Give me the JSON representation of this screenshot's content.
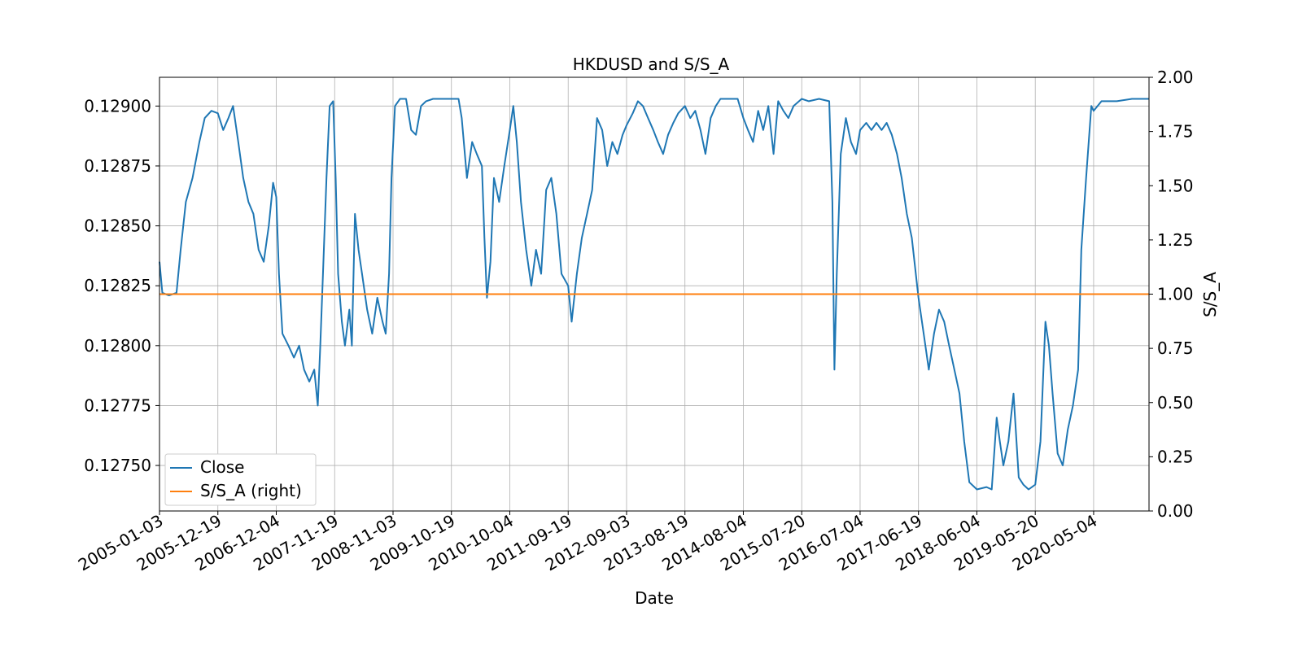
{
  "chart_data": {
    "type": "line",
    "title": "HKDUSD and S/S_A",
    "xlabel": "Date",
    "ylabel_left": "",
    "ylabel_right": "S/S_A",
    "grid": true,
    "legend_position": "lower-left",
    "xlim": [
      "2005-01-03",
      "2021-04-01"
    ],
    "ylim_left": [
      0.12731,
      0.12912
    ],
    "ylim_right": [
      0.0,
      2.0
    ],
    "x_tick_labels": [
      "2005-01-03",
      "2005-12-19",
      "2006-12-04",
      "2007-11-19",
      "2008-11-03",
      "2009-10-19",
      "2010-10-04",
      "2011-09-19",
      "2012-09-03",
      "2013-08-19",
      "2014-08-04",
      "2015-07-20",
      "2016-07-04",
      "2017-06-19",
      "2018-06-04",
      "2019-05-20",
      "2020-05-04"
    ],
    "y_left_tick_labels": [
      "0.12750",
      "0.12775",
      "0.12800",
      "0.12825",
      "0.12850",
      "0.12875",
      "0.12900"
    ],
    "y_right_tick_labels": [
      "0.00",
      "0.25",
      "0.50",
      "0.75",
      "1.00",
      "1.25",
      "1.50",
      "1.75",
      "2.00"
    ],
    "series": [
      {
        "name": "Close",
        "axis": "left",
        "color": "#1f77b4",
        "points": [
          [
            "2005-01-03",
            0.12835
          ],
          [
            "2005-01-20",
            0.12822
          ],
          [
            "2005-03-01",
            0.12821
          ],
          [
            "2005-04-15",
            0.12822
          ],
          [
            "2005-05-10",
            0.1284
          ],
          [
            "2005-06-10",
            0.1286
          ],
          [
            "2005-07-20",
            0.1287
          ],
          [
            "2005-08-30",
            0.12885
          ],
          [
            "2005-10-01",
            0.12895
          ],
          [
            "2005-11-10",
            0.12898
          ],
          [
            "2005-12-19",
            0.12897
          ],
          [
            "2006-01-20",
            0.1289
          ],
          [
            "2006-02-20",
            0.12895
          ],
          [
            "2006-03-20",
            0.129
          ],
          [
            "2006-04-20",
            0.12885
          ],
          [
            "2006-05-20",
            0.1287
          ],
          [
            "2006-06-20",
            0.1286
          ],
          [
            "2006-07-20",
            0.12855
          ],
          [
            "2006-08-20",
            0.1284
          ],
          [
            "2006-09-20",
            0.12835
          ],
          [
            "2006-10-20",
            0.1285
          ],
          [
            "2006-11-15",
            0.12868
          ],
          [
            "2006-12-04",
            0.12862
          ],
          [
            "2006-12-20",
            0.1283
          ],
          [
            "2007-01-10",
            0.12805
          ],
          [
            "2007-02-15",
            0.128
          ],
          [
            "2007-03-20",
            0.12795
          ],
          [
            "2007-04-20",
            0.128
          ],
          [
            "2007-05-20",
            0.1279
          ],
          [
            "2007-06-20",
            0.12785
          ],
          [
            "2007-07-20",
            0.1279
          ],
          [
            "2007-08-10",
            0.12775
          ],
          [
            "2007-08-25",
            0.128
          ],
          [
            "2007-09-10",
            0.1283
          ],
          [
            "2007-10-01",
            0.1287
          ],
          [
            "2007-10-20",
            0.129
          ],
          [
            "2007-11-10",
            0.12902
          ],
          [
            "2007-11-25",
            0.1287
          ],
          [
            "2007-12-10",
            0.1283
          ],
          [
            "2008-01-01",
            0.1281
          ],
          [
            "2008-01-20",
            0.128
          ],
          [
            "2008-02-15",
            0.12815
          ],
          [
            "2008-03-01",
            0.128
          ],
          [
            "2008-03-20",
            0.12855
          ],
          [
            "2008-04-10",
            0.1284
          ],
          [
            "2008-05-01",
            0.1283
          ],
          [
            "2008-06-01",
            0.12815
          ],
          [
            "2008-07-01",
            0.12805
          ],
          [
            "2008-08-01",
            0.1282
          ],
          [
            "2008-09-01",
            0.1281
          ],
          [
            "2008-09-20",
            0.12805
          ],
          [
            "2008-10-10",
            0.1283
          ],
          [
            "2008-10-25",
            0.1287
          ],
          [
            "2008-11-15",
            0.129
          ],
          [
            "2008-12-15",
            0.12903
          ],
          [
            "2009-01-20",
            0.12903
          ],
          [
            "2009-02-20",
            0.1289
          ],
          [
            "2009-03-20",
            0.12888
          ],
          [
            "2009-04-20",
            0.129
          ],
          [
            "2009-05-20",
            0.12902
          ],
          [
            "2009-07-01",
            0.12903
          ],
          [
            "2009-09-01",
            0.12903
          ],
          [
            "2009-11-01",
            0.12903
          ],
          [
            "2009-12-01",
            0.12903
          ],
          [
            "2009-12-20",
            0.12895
          ],
          [
            "2010-01-20",
            0.1287
          ],
          [
            "2010-02-20",
            0.12885
          ],
          [
            "2010-03-20",
            0.1288
          ],
          [
            "2010-04-20",
            0.12875
          ],
          [
            "2010-05-05",
            0.12845
          ],
          [
            "2010-05-20",
            0.1282
          ],
          [
            "2010-06-10",
            0.12835
          ],
          [
            "2010-07-01",
            0.1287
          ],
          [
            "2010-08-01",
            0.1286
          ],
          [
            "2010-09-01",
            0.12875
          ],
          [
            "2010-10-04",
            0.1289
          ],
          [
            "2010-10-25",
            0.129
          ],
          [
            "2010-11-15",
            0.12885
          ],
          [
            "2010-12-10",
            0.1286
          ],
          [
            "2011-01-10",
            0.1284
          ],
          [
            "2011-02-10",
            0.12825
          ],
          [
            "2011-03-10",
            0.1284
          ],
          [
            "2011-04-10",
            0.1283
          ],
          [
            "2011-05-10",
            0.12865
          ],
          [
            "2011-06-10",
            0.1287
          ],
          [
            "2011-07-10",
            0.12855
          ],
          [
            "2011-08-10",
            0.1283
          ],
          [
            "2011-09-19",
            0.12825
          ],
          [
            "2011-10-10",
            0.1281
          ],
          [
            "2011-11-10",
            0.1283
          ],
          [
            "2011-12-10",
            0.12845
          ],
          [
            "2012-01-10",
            0.12855
          ],
          [
            "2012-02-10",
            0.12865
          ],
          [
            "2012-03-10",
            0.12895
          ],
          [
            "2012-04-10",
            0.1289
          ],
          [
            "2012-05-10",
            0.12875
          ],
          [
            "2012-06-10",
            0.12885
          ],
          [
            "2012-07-10",
            0.1288
          ],
          [
            "2012-08-10",
            0.12888
          ],
          [
            "2012-09-03",
            0.12892
          ],
          [
            "2012-10-10",
            0.12897
          ],
          [
            "2012-11-10",
            0.12902
          ],
          [
            "2012-12-10",
            0.129
          ],
          [
            "2013-01-10",
            0.12895
          ],
          [
            "2013-02-10",
            0.1289
          ],
          [
            "2013-03-10",
            0.12885
          ],
          [
            "2013-04-10",
            0.1288
          ],
          [
            "2013-05-10",
            0.12888
          ],
          [
            "2013-06-10",
            0.12893
          ],
          [
            "2013-07-10",
            0.12897
          ],
          [
            "2013-08-19",
            0.129
          ],
          [
            "2013-09-20",
            0.12895
          ],
          [
            "2013-10-20",
            0.12898
          ],
          [
            "2013-11-20",
            0.1289
          ],
          [
            "2013-12-20",
            0.1288
          ],
          [
            "2014-01-20",
            0.12895
          ],
          [
            "2014-02-20",
            0.129
          ],
          [
            "2014-03-20",
            0.12903
          ],
          [
            "2014-05-20",
            0.12903
          ],
          [
            "2014-07-01",
            0.12903
          ],
          [
            "2014-08-04",
            0.12895
          ],
          [
            "2014-09-01",
            0.1289
          ],
          [
            "2014-10-01",
            0.12885
          ],
          [
            "2014-11-01",
            0.12898
          ],
          [
            "2014-12-01",
            0.1289
          ],
          [
            "2015-01-01",
            0.129
          ],
          [
            "2015-02-01",
            0.1288
          ],
          [
            "2015-03-01",
            0.12902
          ],
          [
            "2015-04-01",
            0.12898
          ],
          [
            "2015-05-01",
            0.12895
          ],
          [
            "2015-06-01",
            0.129
          ],
          [
            "2015-07-20",
            0.12903
          ],
          [
            "2015-09-01",
            0.12902
          ],
          [
            "2015-11-01",
            0.12903
          ],
          [
            "2016-01-01",
            0.12902
          ],
          [
            "2016-01-20",
            0.1286
          ],
          [
            "2016-02-01",
            0.1279
          ],
          [
            "2016-02-15",
            0.1283
          ],
          [
            "2016-03-10",
            0.1288
          ],
          [
            "2016-04-10",
            0.12895
          ],
          [
            "2016-05-10",
            0.12885
          ],
          [
            "2016-06-10",
            0.1288
          ],
          [
            "2016-07-04",
            0.1289
          ],
          [
            "2016-08-10",
            0.12893
          ],
          [
            "2016-09-10",
            0.1289
          ],
          [
            "2016-10-10",
            0.12893
          ],
          [
            "2016-11-10",
            0.1289
          ],
          [
            "2016-12-10",
            0.12893
          ],
          [
            "2017-01-10",
            0.12888
          ],
          [
            "2017-02-10",
            0.1288
          ],
          [
            "2017-03-10",
            0.1287
          ],
          [
            "2017-04-10",
            0.12855
          ],
          [
            "2017-05-10",
            0.12845
          ],
          [
            "2017-06-19",
            0.1282
          ],
          [
            "2017-07-20",
            0.12805
          ],
          [
            "2017-08-20",
            0.1279
          ],
          [
            "2017-09-20",
            0.12805
          ],
          [
            "2017-10-20",
            0.12815
          ],
          [
            "2017-11-20",
            0.1281
          ],
          [
            "2017-12-20",
            0.128
          ],
          [
            "2018-01-20",
            0.1279
          ],
          [
            "2018-02-20",
            0.1278
          ],
          [
            "2018-03-20",
            0.1276
          ],
          [
            "2018-04-20",
            0.12743
          ],
          [
            "2018-06-04",
            0.1274
          ],
          [
            "2018-08-01",
            0.12741
          ],
          [
            "2018-09-01",
            0.1274
          ],
          [
            "2018-10-01",
            0.1277
          ],
          [
            "2018-10-20",
            0.1276
          ],
          [
            "2018-11-10",
            0.1275
          ],
          [
            "2018-12-10",
            0.1276
          ],
          [
            "2019-01-10",
            0.1278
          ],
          [
            "2019-02-10",
            0.12745
          ],
          [
            "2019-03-10",
            0.12742
          ],
          [
            "2019-04-10",
            0.1274
          ],
          [
            "2019-05-20",
            0.12742
          ],
          [
            "2019-06-20",
            0.1276
          ],
          [
            "2019-07-20",
            0.1281
          ],
          [
            "2019-08-10",
            0.128
          ],
          [
            "2019-09-01",
            0.1278
          ],
          [
            "2019-10-01",
            0.12755
          ],
          [
            "2019-11-01",
            0.1275
          ],
          [
            "2019-12-01",
            0.12765
          ],
          [
            "2020-01-01",
            0.12775
          ],
          [
            "2020-02-01",
            0.1279
          ],
          [
            "2020-02-20",
            0.1284
          ],
          [
            "2020-03-20",
            0.1287
          ],
          [
            "2020-04-20",
            0.129
          ],
          [
            "2020-05-04",
            0.12898
          ],
          [
            "2020-06-20",
            0.12902
          ],
          [
            "2020-09-20",
            0.12902
          ],
          [
            "2020-12-20",
            0.12903
          ],
          [
            "2021-04-01",
            0.12903
          ]
        ]
      },
      {
        "name": "S/S_A (right)",
        "axis": "right",
        "color": "#ff7f0e",
        "points": [
          [
            "2005-01-03",
            1.0
          ],
          [
            "2021-04-01",
            1.0
          ]
        ]
      }
    ]
  }
}
